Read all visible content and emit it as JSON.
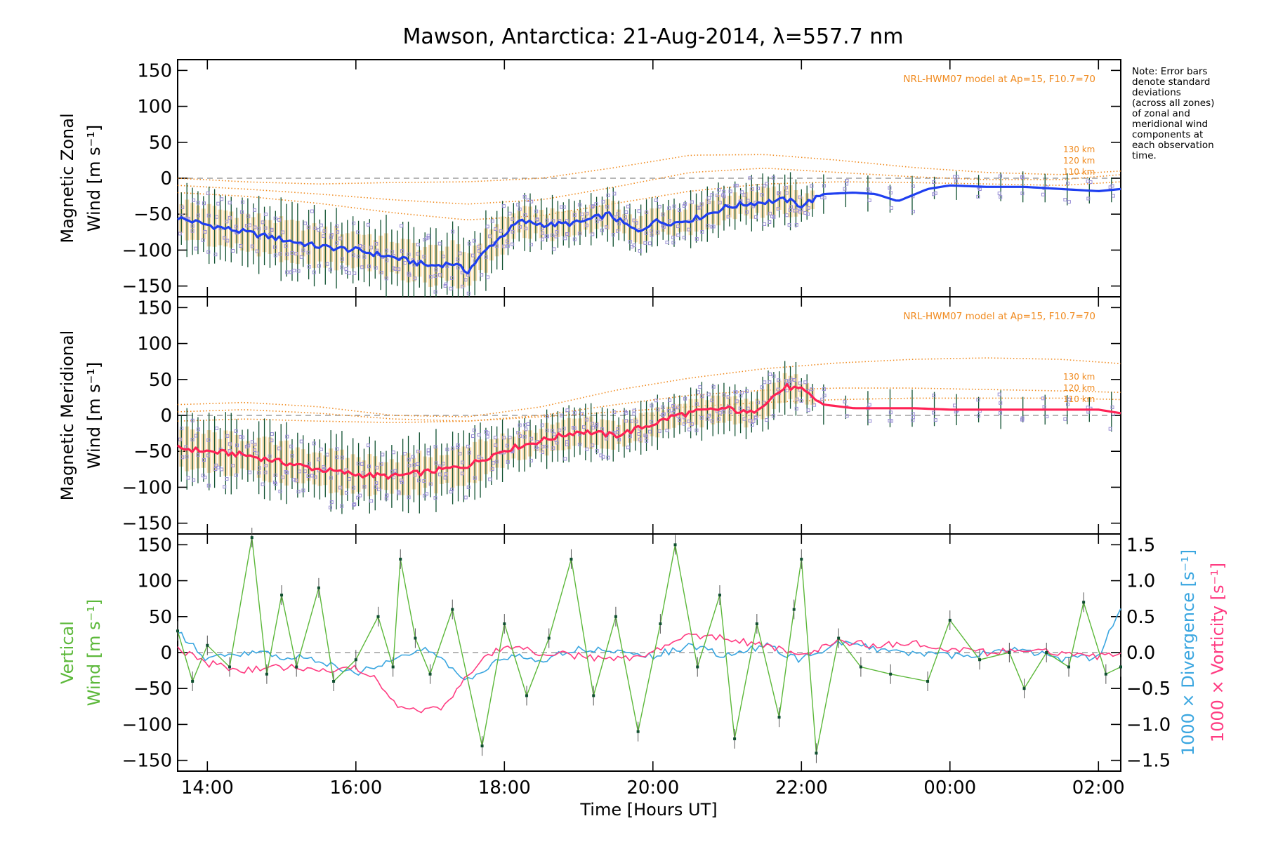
{
  "figure": {
    "title": "Mawson, Antarctica: 21-Aug-2014, λ=557.7 nm",
    "xlabel": "Time [Hours UT]",
    "note_lines": [
      "Note: Error bars",
      "denote standard",
      "deviations",
      "(across all zones)",
      "of zonal and",
      "meridional wind",
      "components at",
      "each observation",
      "time."
    ]
  },
  "colors": {
    "zonal": "#1f3ff0",
    "zonal_light": "#52b0ff",
    "meridional": "#ff2255",
    "model": "#f08a1e",
    "vertical": "#5cb83a",
    "divergence": "#3aa6e0",
    "vorticity": "#ff3c82",
    "errbar": "#0f5030",
    "band": "#f8d49a",
    "scatter": "#9a8fd6",
    "dashed": "#8a8a8a"
  },
  "chart_data": [
    {
      "type": "line",
      "panel": "zonal",
      "ylabel_line1": "Magnetic Zonal",
      "ylabel_line2": "Wind [m s⁻¹]",
      "ylim": [
        -165,
        165
      ],
      "yticks": [
        -150,
        -100,
        -50,
        0,
        50,
        100,
        150
      ],
      "xlim": [
        13.6,
        26.3
      ],
      "xticks": [
        14,
        16,
        18,
        20,
        22,
        24,
        26
      ],
      "xticklabels": [
        "14:00",
        "16:00",
        "18:00",
        "20:00",
        "22:00",
        "00:00",
        "02:00"
      ],
      "model_label": "NRL-HWM07 model at Ap=15, F10.7=70",
      "model_series": [
        {
          "name": "130 km",
          "x": [
            13.6,
            14.5,
            15.5,
            16.5,
            17.5,
            18.5,
            19.5,
            20.5,
            21.5,
            22.5,
            23.5,
            24.5,
            25.5,
            26.3
          ],
          "y": [
            0,
            -5,
            -8,
            -6,
            -5,
            0,
            15,
            32,
            33,
            25,
            15,
            8,
            5,
            10
          ]
        },
        {
          "name": "120 km",
          "x": [
            13.6,
            14.5,
            15.5,
            16.5,
            17.5,
            18.5,
            19.5,
            20.5,
            21.5,
            22.5,
            23.5,
            24.5,
            25.5,
            26.3
          ],
          "y": [
            -10,
            -15,
            -22,
            -30,
            -36,
            -30,
            -12,
            8,
            14,
            8,
            2,
            -2,
            -2,
            5
          ]
        },
        {
          "name": "110 km",
          "x": [
            13.6,
            14.5,
            15.5,
            16.5,
            17.5,
            18.5,
            19.5,
            20.5,
            21.5,
            22.5,
            23.5,
            24.5,
            25.5,
            26.3
          ],
          "y": [
            -20,
            -25,
            -35,
            -48,
            -58,
            -52,
            -35,
            -18,
            -8,
            -5,
            -6,
            -8,
            -10,
            -5
          ]
        }
      ],
      "series": [
        {
          "name": "zonal wind",
          "x": [
            13.6,
            14.0,
            14.5,
            15.0,
            15.5,
            16.0,
            16.5,
            17.0,
            17.3,
            17.5,
            17.8,
            18.2,
            18.6,
            19.0,
            19.4,
            19.8,
            20.0,
            20.3,
            20.6,
            21.0,
            21.3,
            21.6,
            21.8,
            22.0,
            22.3,
            22.7,
            23.0,
            23.3,
            23.7,
            24.0,
            24.5,
            25.0,
            25.5,
            26.0,
            26.3
          ],
          "y": [
            -55,
            -65,
            -75,
            -85,
            -95,
            -100,
            -110,
            -122,
            -118,
            -130,
            -95,
            -60,
            -65,
            -62,
            -50,
            -75,
            -60,
            -62,
            -55,
            -40,
            -35,
            -32,
            -30,
            -38,
            -22,
            -20,
            -22,
            -32,
            -15,
            -10,
            -12,
            -12,
            -15,
            -18,
            -15
          ]
        }
      ]
    },
    {
      "type": "line",
      "panel": "meridional",
      "ylabel_line1": "Magnetic Meridional",
      "ylabel_line2": "Wind [m s⁻¹]",
      "ylim": [
        -165,
        165
      ],
      "yticks": [
        -150,
        -100,
        -50,
        0,
        50,
        100,
        150
      ],
      "xlim": [
        13.6,
        26.3
      ],
      "xticks": [
        14,
        16,
        18,
        20,
        22,
        24,
        26
      ],
      "model_label": "NRL-HWM07 model at Ap=15, F10.7=70",
      "model_series": [
        {
          "name": "130 km",
          "x": [
            13.6,
            14.5,
            15.5,
            16.5,
            17.5,
            18.5,
            19.5,
            20.5,
            21.5,
            22.5,
            23.5,
            24.5,
            25.5,
            26.3
          ],
          "y": [
            15,
            18,
            12,
            0,
            -2,
            12,
            35,
            52,
            65,
            73,
            78,
            80,
            78,
            72
          ]
        },
        {
          "name": "120 km",
          "x": [
            13.6,
            14.5,
            15.5,
            16.5,
            17.5,
            18.5,
            19.5,
            20.5,
            21.5,
            22.5,
            23.5,
            24.5,
            25.5,
            26.3
          ],
          "y": [
            5,
            8,
            3,
            -5,
            -8,
            0,
            15,
            28,
            35,
            38,
            38,
            36,
            34,
            32
          ]
        },
        {
          "name": "110 km",
          "x": [
            13.6,
            14.5,
            15.5,
            16.5,
            17.5,
            18.5,
            19.5,
            20.5,
            21.5,
            22.5,
            23.5,
            24.5,
            25.5,
            26.3
          ],
          "y": [
            -8,
            -5,
            -8,
            -10,
            -8,
            -2,
            5,
            12,
            18,
            22,
            24,
            24,
            24,
            22
          ]
        }
      ],
      "series": [
        {
          "name": "meridional wind",
          "x": [
            13.6,
            14.0,
            14.5,
            15.0,
            15.5,
            16.0,
            16.5,
            17.0,
            17.5,
            18.0,
            18.5,
            19.0,
            19.5,
            20.0,
            20.3,
            20.6,
            21.0,
            21.3,
            21.6,
            21.8,
            22.0,
            22.3,
            22.7,
            23.0,
            23.5,
            24.0,
            24.5,
            25.0,
            25.5,
            26.0,
            26.3
          ],
          "y": [
            -45,
            -50,
            -55,
            -65,
            -75,
            -82,
            -85,
            -78,
            -70,
            -48,
            -35,
            -22,
            -28,
            -12,
            0,
            5,
            10,
            2,
            25,
            40,
            35,
            15,
            10,
            10,
            10,
            8,
            8,
            8,
            8,
            8,
            3
          ]
        }
      ]
    },
    {
      "type": "line",
      "panel": "vertical",
      "ylabel_line1": "Vertical",
      "ylabel_line2": "Wind [m s⁻¹]",
      "ylim": [
        -165,
        165
      ],
      "yticks": [
        -150,
        -100,
        -50,
        0,
        50,
        100,
        150
      ],
      "xlim": [
        13.6,
        26.3
      ],
      "xticks": [
        14,
        16,
        18,
        20,
        22,
        24,
        26
      ],
      "xticklabels": [
        "14:00",
        "16:00",
        "18:00",
        "20:00",
        "22:00",
        "00:00",
        "02:00"
      ],
      "y2label_div": "1000 × Divergence [s⁻¹]",
      "y2label_vort": "1000 × Vorticity [s⁻¹]",
      "y2lim": [
        -1.65,
        1.65
      ],
      "y2ticks": [
        -1.5,
        -1.0,
        -0.5,
        0.0,
        0.5,
        1.0,
        1.5
      ],
      "y2ticklabels": [
        "-1.5",
        "-1.0",
        "-0.5",
        "0.0",
        "0.5",
        "1.0",
        "1.5"
      ],
      "series": [
        {
          "name": "vertical wind",
          "x": [
            13.6,
            13.8,
            14.0,
            14.3,
            14.6,
            14.8,
            15.0,
            15.2,
            15.5,
            15.7,
            16.0,
            16.3,
            16.5,
            16.6,
            16.8,
            17.0,
            17.3,
            17.7,
            18.0,
            18.3,
            18.6,
            18.9,
            19.2,
            19.5,
            19.8,
            20.1,
            20.3,
            20.6,
            20.9,
            21.1,
            21.4,
            21.7,
            21.9,
            22.0,
            22.2,
            22.5,
            22.8,
            23.2,
            23.7,
            24.0,
            24.4,
            24.8,
            25.0,
            25.3,
            25.6,
            25.8,
            26.1,
            26.3
          ],
          "y": [
            30,
            -40,
            10,
            -20,
            160,
            -30,
            80,
            -20,
            90,
            -40,
            -10,
            50,
            -20,
            130,
            20,
            -30,
            60,
            -130,
            40,
            -60,
            20,
            130,
            -60,
            50,
            -110,
            40,
            150,
            -20,
            80,
            -120,
            40,
            -90,
            60,
            130,
            -140,
            20,
            -20,
            -30,
            -40,
            45,
            -10,
            0,
            -50,
            0,
            -20,
            70,
            -30,
            -20
          ]
        },
        {
          "name": "1000 × Divergence",
          "x": [
            13.6,
            14.0,
            14.5,
            15.0,
            15.5,
            16.0,
            16.5,
            17.0,
            17.5,
            18.0,
            18.5,
            19.0,
            19.5,
            20.0,
            20.5,
            21.0,
            21.5,
            22.0,
            22.5,
            23.0,
            23.5,
            24.0,
            24.5,
            25.0,
            25.5,
            26.0,
            26.3
          ],
          "y": [
            0.3,
            -0.1,
            0.0,
            -0.05,
            -0.1,
            -0.3,
            -0.1,
            0.05,
            -0.4,
            -0.05,
            -0.1,
            0.05,
            0.0,
            -0.05,
            0.1,
            -0.05,
            0.1,
            -0.1,
            0.15,
            0.05,
            0.0,
            -0.05,
            0.0,
            0.05,
            -0.1,
            -0.05,
            0.6
          ]
        },
        {
          "name": "1000 × Vorticity",
          "x": [
            13.6,
            14.0,
            14.5,
            15.0,
            15.5,
            16.0,
            16.3,
            16.6,
            16.9,
            17.2,
            17.6,
            18.0,
            18.5,
            19.0,
            19.5,
            20.0,
            20.5,
            21.0,
            21.5,
            22.0,
            22.5,
            23.0,
            23.5,
            24.0,
            24.5,
            25.0,
            25.5,
            26.0,
            26.3
          ],
          "y": [
            0.05,
            -0.15,
            -0.25,
            -0.2,
            -0.25,
            -0.2,
            -0.4,
            -0.78,
            -0.8,
            -0.75,
            -0.2,
            0.1,
            0.0,
            -0.05,
            -0.1,
            0.0,
            0.25,
            0.2,
            0.1,
            -0.05,
            0.15,
            0.1,
            0.15,
            0.05,
            0.0,
            0.05,
            0.0,
            -0.05,
            0.0
          ]
        }
      ]
    }
  ]
}
